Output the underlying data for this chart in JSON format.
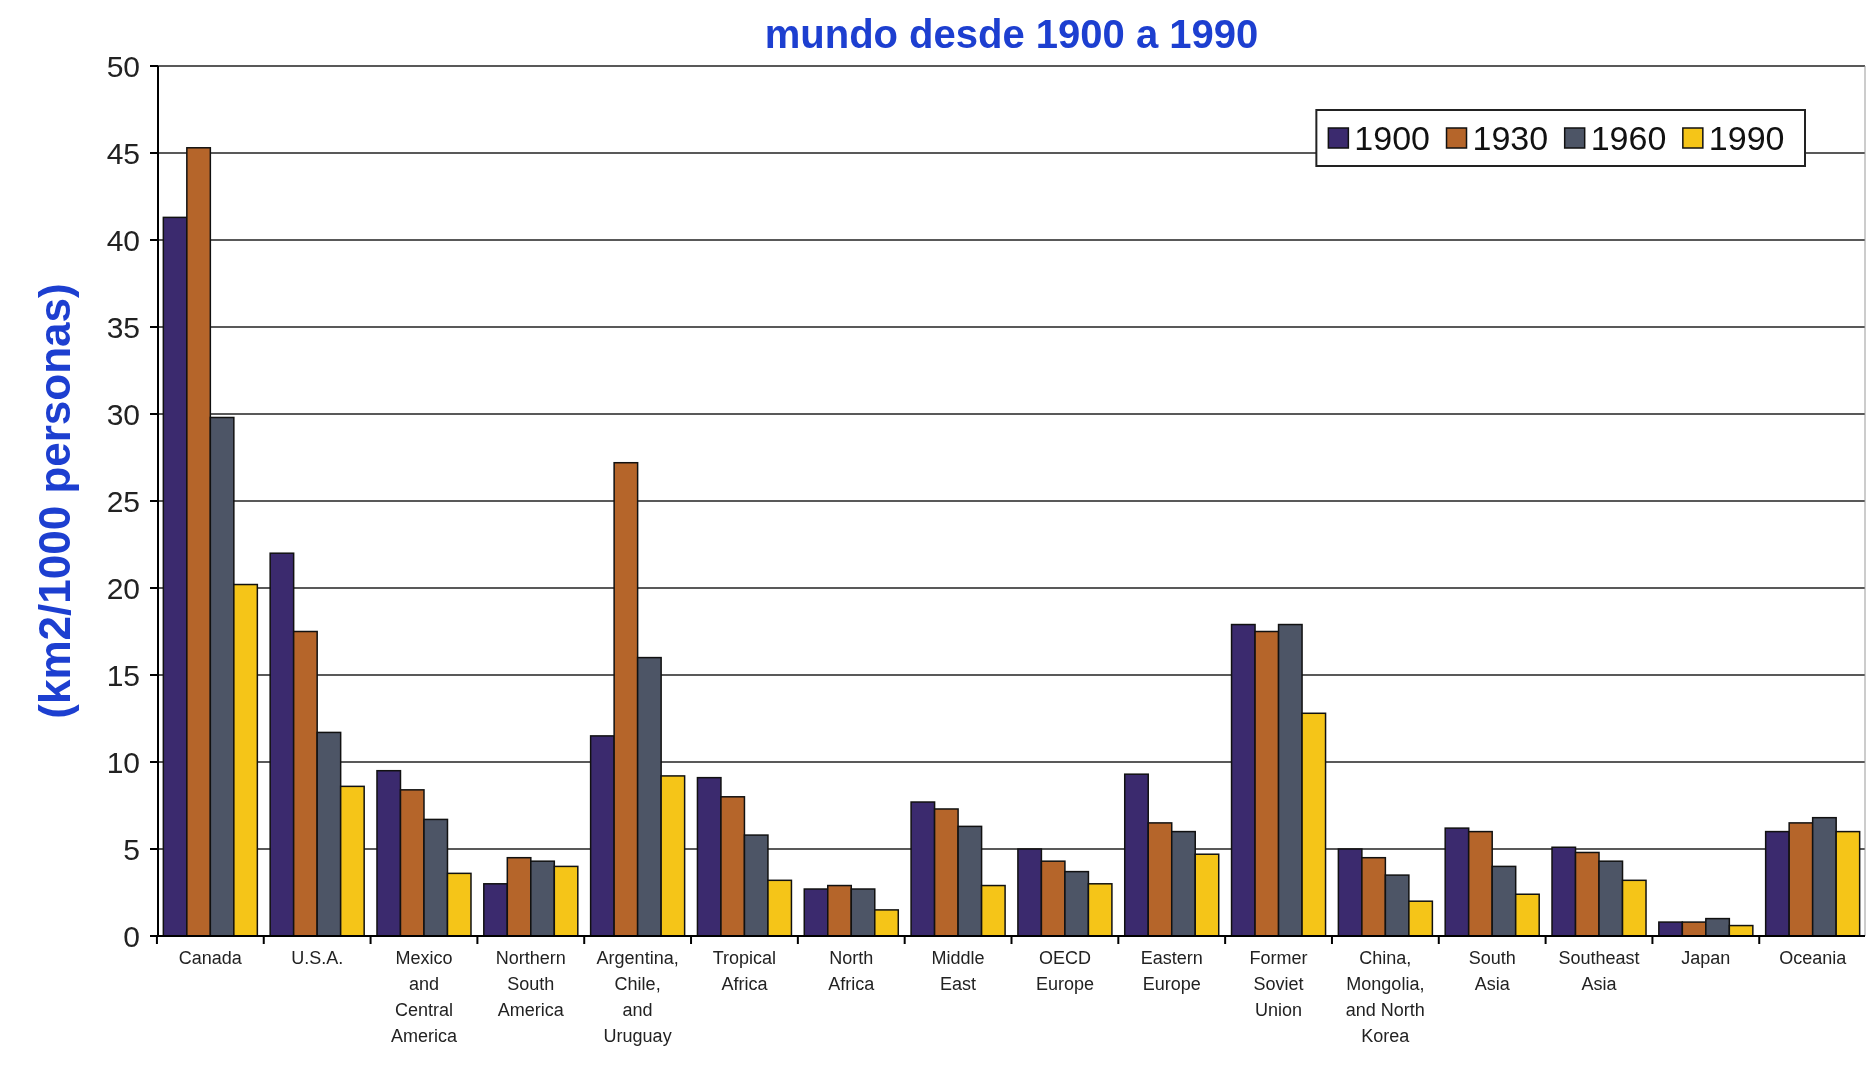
{
  "chart_data": {
    "type": "bar",
    "title": "mundo desde 1900 a 1990",
    "ylabel": "(km2/1000 personas)",
    "categories": [
      "Canada",
      "U.S.A.",
      "Mexico and Central America",
      "Northern South America",
      "Argentina, Chile, and Uruguay",
      "Tropical Africa",
      "North Africa",
      "Middle East",
      "OECD Europe",
      "Eastern Europe",
      "Former Soviet Union",
      "China, Mongolia, and North Korea",
      "South Asia",
      "Southeast Asia",
      "Japan",
      "Oceania"
    ],
    "series": [
      {
        "name": "1900",
        "color": "#3b2a6e",
        "values": [
          41.3,
          22,
          9.5,
          3,
          11.5,
          9.1,
          2.7,
          7.7,
          5,
          9.3,
          17.9,
          5,
          6.2,
          5.1,
          0.8,
          6
        ]
      },
      {
        "name": "1930",
        "color": "#b5652a",
        "values": [
          45.3,
          17.5,
          8.4,
          4.5,
          27.2,
          8,
          2.9,
          7.3,
          4.3,
          6.5,
          17.5,
          4.5,
          6,
          4.8,
          0.8,
          6.5
        ]
      },
      {
        "name": "1960",
        "color": "#4d5566",
        "values": [
          29.8,
          11.7,
          6.7,
          4.3,
          16,
          5.8,
          2.7,
          6.3,
          3.7,
          6,
          17.9,
          3.5,
          4,
          4.3,
          1,
          6.8
        ]
      },
      {
        "name": "1990",
        "color": "#f5c518",
        "values": [
          20.2,
          8.6,
          3.6,
          4,
          9.2,
          3.2,
          1.5,
          2.9,
          3,
          4.7,
          12.8,
          2,
          2.4,
          3.2,
          0.6,
          6
        ]
      }
    ],
    "ylim": [
      0,
      50
    ],
    "yticks": [
      0,
      5,
      10,
      15,
      20,
      25,
      30,
      35,
      40,
      45,
      50
    ],
    "grid": "y",
    "legend": "top right"
  }
}
